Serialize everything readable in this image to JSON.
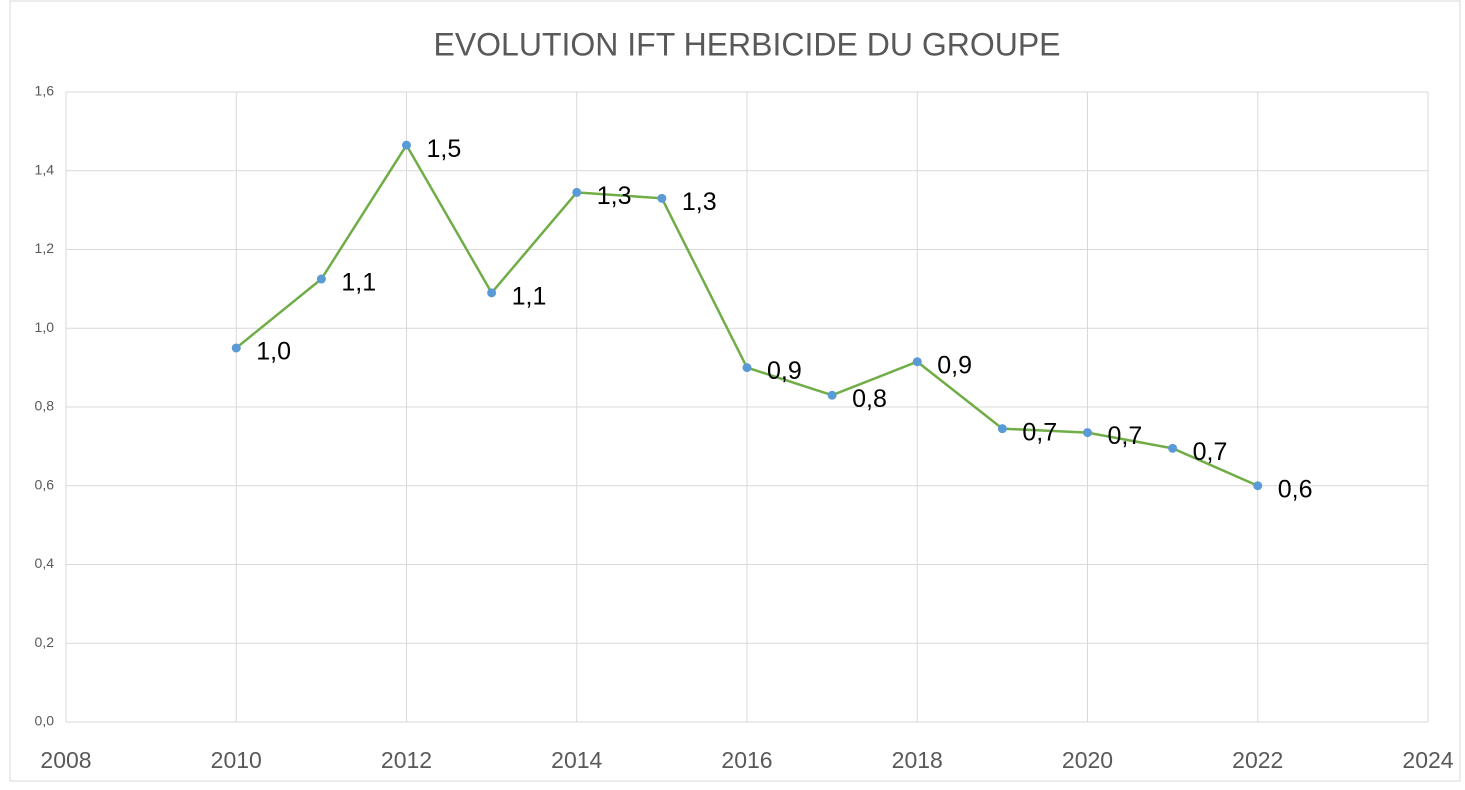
{
  "chart_data": {
    "type": "line",
    "title": "EVOLUTION IFT HERBICIDE DU GROUPE",
    "x": [
      2010,
      2011,
      2012,
      2013,
      2014,
      2015,
      2016,
      2017,
      2018,
      2019,
      2020,
      2021,
      2022
    ],
    "values": [
      0.95,
      1.125,
      1.465,
      1.09,
      1.345,
      1.33,
      0.9,
      0.83,
      0.915,
      0.745,
      0.735,
      0.695,
      0.6
    ],
    "value_labels": [
      "1,0",
      "1,1",
      "1,5",
      "1,1",
      "1,3",
      "1,3",
      "0,9",
      "0,8",
      "0,9",
      "0,7",
      "0,7",
      "0,7",
      "0,6"
    ],
    "color": "#70ad47",
    "marker_color": "#5b9bd5",
    "xlim": [
      2008,
      2024
    ],
    "xticks": [
      2008,
      2010,
      2012,
      2014,
      2016,
      2018,
      2020,
      2022,
      2024
    ],
    "ylim": [
      0,
      1.6
    ],
    "yticks": [
      {
        "value": 0,
        "label": "0,0"
      },
      {
        "value": 0.2,
        "label": "0,2"
      },
      {
        "value": 0.4,
        "label": "0,4"
      },
      {
        "value": 0.6,
        "label": "0,6"
      },
      {
        "value": 0.8,
        "label": "0,8"
      },
      {
        "value": 1.0,
        "label": "1,0"
      },
      {
        "value": 1.2,
        "label": "1,2"
      },
      {
        "value": 1.4,
        "label": "1,4"
      },
      {
        "value": 1.6,
        "label": "1,6"
      }
    ],
    "grid": true
  }
}
